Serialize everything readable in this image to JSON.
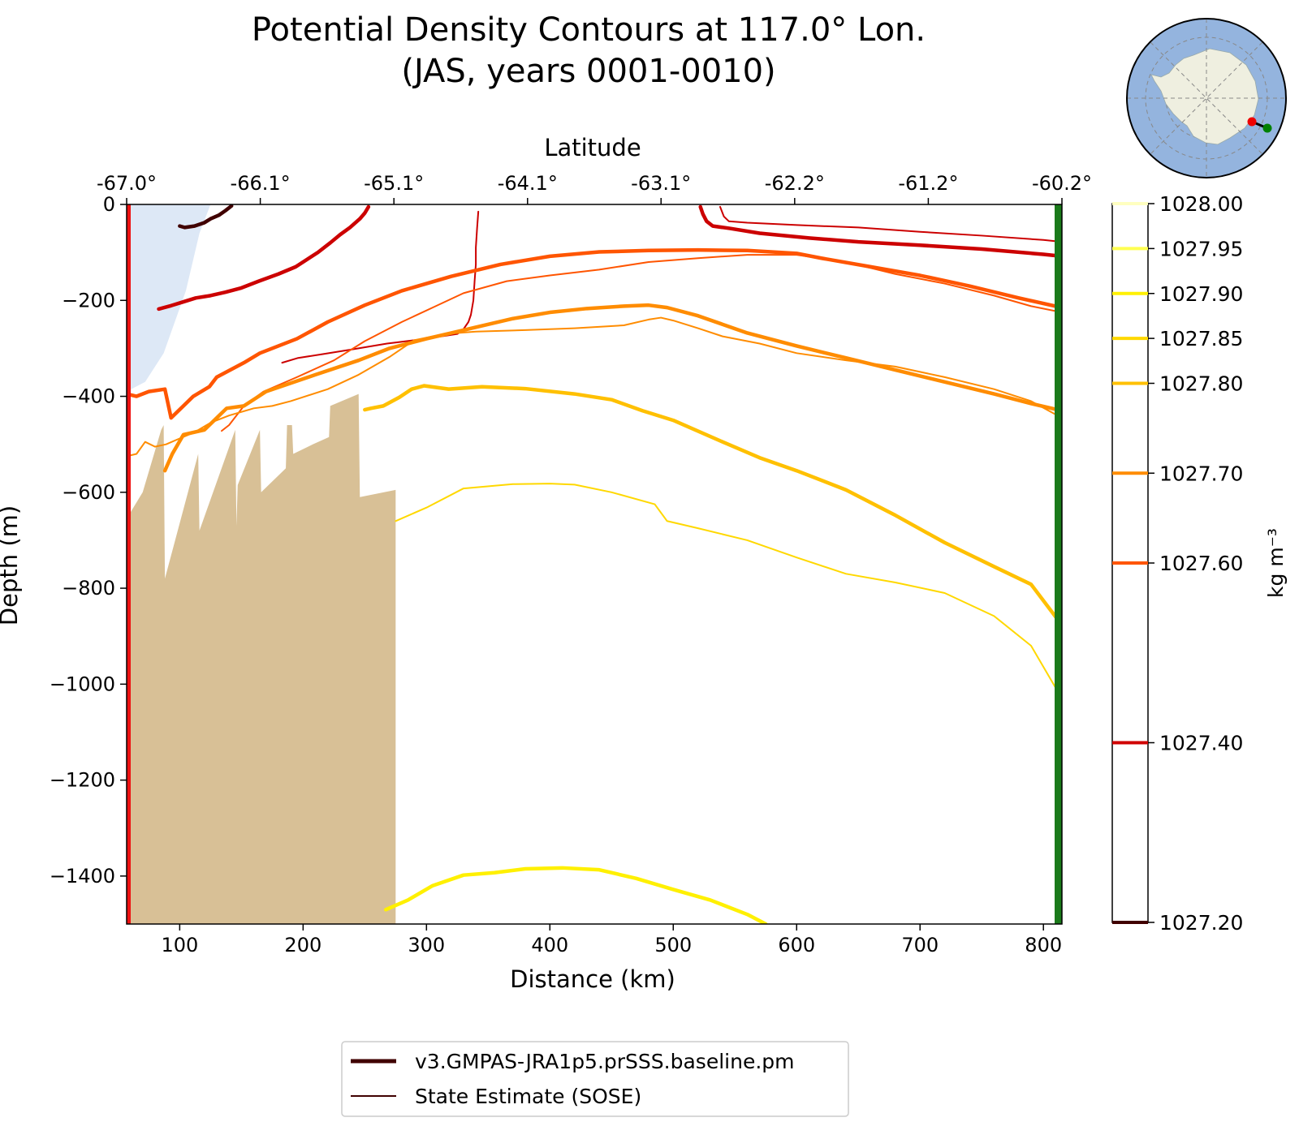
{
  "chart_data": {
    "type": "line",
    "title": "Potential Density Contours at 117.0° Lon.",
    "subtitle": "(JAS, years 0001-0010)",
    "xlabel": "Distance (km)",
    "ylabel": "Depth (m)",
    "top_xlabel": "Latitude",
    "xlim": [
      57,
      815
    ],
    "ylim": [
      -1500,
      0
    ],
    "x_ticks": [
      100,
      200,
      300,
      400,
      500,
      600,
      700,
      800
    ],
    "y_ticks": [
      0,
      -200,
      -400,
      -600,
      -800,
      -1000,
      -1200,
      -1400
    ],
    "y_tick_labels": [
      "0",
      "−200",
      "−400",
      "−600",
      "−800",
      "−1000",
      "−1200",
      "−1400"
    ],
    "top_ticks": [
      {
        "x": 57,
        "label": "-67.0°"
      },
      {
        "x": 165.3,
        "label": "-66.1°"
      },
      {
        "x": 273.6,
        "label": "-65.1°"
      },
      {
        "x": 381.9,
        "label": "-64.1°"
      },
      {
        "x": 490.1,
        "label": "-63.1°"
      },
      {
        "x": 598.4,
        "label": "-62.2°"
      },
      {
        "x": 706.7,
        "label": "-61.2°"
      },
      {
        "x": 815,
        "label": "-60.2°"
      }
    ],
    "colorbar": {
      "label": "kg m⁻³",
      "min": 1027.2,
      "max": 1028.0,
      "ticks": [
        {
          "value": 1028.0,
          "label": "1028.00",
          "color": "#ffffc0"
        },
        {
          "value": 1027.95,
          "label": "1027.95",
          "color": "#ffff50"
        },
        {
          "value": 1027.9,
          "label": "1027.90",
          "color": "#fff000"
        },
        {
          "value": 1027.85,
          "label": "1027.85",
          "color": "#ffd800"
        },
        {
          "value": 1027.8,
          "label": "1027.80",
          "color": "#ffc000"
        },
        {
          "value": 1027.7,
          "label": "1027.70",
          "color": "#ff8c00"
        },
        {
          "value": 1027.6,
          "label": "1027.60",
          "color": "#ff5500"
        },
        {
          "value": 1027.4,
          "label": "1027.40",
          "color": "#d00000"
        },
        {
          "value": 1027.2,
          "label": "1027.20",
          "color": "#400000"
        }
      ]
    },
    "legend": {
      "placement": "bottom-center",
      "entries": [
        {
          "label": "v3.GMPAS-JRA1p5.prSSS.baseline.pm",
          "style": "thick",
          "color": "#400000"
        },
        {
          "label": "State Estimate (SOSE)",
          "style": "thin",
          "color": "#400000"
        }
      ]
    },
    "section_start_color": "#ee1111",
    "section_end_color": "#1a7a1a",
    "bathymetry_color": "#d8c096",
    "ice_shelf_color": "#dde8f6",
    "map_colors": {
      "ocean": "#94b4de",
      "land": "#efefe0",
      "start": "#ee0000",
      "end": "#008000"
    },
    "bathymetry": [
      [
        57,
        -655
      ],
      [
        70,
        -600
      ],
      [
        85,
        -470
      ],
      [
        87,
        -460
      ],
      [
        88,
        -780
      ],
      [
        115,
        -520
      ],
      [
        116,
        -680
      ],
      [
        145,
        -470
      ],
      [
        146,
        -670
      ],
      [
        147,
        -585
      ],
      [
        165,
        -470
      ],
      [
        166,
        -600
      ],
      [
        186,
        -550
      ],
      [
        187,
        -460
      ],
      [
        191,
        -460
      ],
      [
        192,
        -520
      ],
      [
        208,
        -500
      ],
      [
        221,
        -485
      ],
      [
        222,
        -420
      ],
      [
        245,
        -395
      ],
      [
        246,
        -610
      ],
      [
        275,
        -595
      ],
      [
        275,
        -1500
      ],
      [
        57,
        -1500
      ]
    ],
    "ice_shelf": [
      [
        57,
        0
      ],
      [
        125,
        0
      ],
      [
        116,
        -60
      ],
      [
        105,
        -180
      ],
      [
        87,
        -310
      ],
      [
        72,
        -370
      ],
      [
        57,
        -390
      ]
    ],
    "series": [
      {
        "density": 1027.2,
        "style": "thick",
        "color": "#400000",
        "points": [
          [
            100,
            -45
          ],
          [
            104,
            -48
          ],
          [
            112,
            -45
          ],
          [
            120,
            -38
          ],
          [
            125,
            -30
          ],
          [
            132,
            -22
          ],
          [
            137,
            -13
          ],
          [
            142,
            -3
          ]
        ]
      },
      {
        "density": 1027.4,
        "style": "thick",
        "color": "#cc0000",
        "points": [
          [
            83,
            -218
          ],
          [
            93,
            -211
          ],
          [
            103,
            -203
          ],
          [
            113,
            -195
          ],
          [
            125,
            -190
          ],
          [
            137,
            -183
          ],
          [
            150,
            -174
          ],
          [
            164,
            -160
          ],
          [
            180,
            -145
          ],
          [
            194,
            -130
          ],
          [
            203,
            -115
          ],
          [
            212,
            -100
          ],
          [
            222,
            -80
          ],
          [
            230,
            -63
          ],
          [
            238,
            -48
          ],
          [
            246,
            -30
          ],
          [
            250,
            -18
          ],
          [
            253,
            -5
          ]
        ]
      },
      {
        "density": 1027.4,
        "style": "thick",
        "color": "#cc0000",
        "points": [
          [
            522,
            -5
          ],
          [
            524,
            -20
          ],
          [
            527,
            -35
          ],
          [
            532,
            -45
          ],
          [
            546,
            -50
          ],
          [
            570,
            -60
          ],
          [
            610,
            -70
          ],
          [
            650,
            -78
          ],
          [
            700,
            -85
          ],
          [
            750,
            -93
          ],
          [
            800,
            -104
          ],
          [
            815,
            -108
          ]
        ]
      },
      {
        "density": 1027.4,
        "style": "thin",
        "color": "#cc0000",
        "points": [
          [
            183,
            -330
          ],
          [
            196,
            -320
          ],
          [
            216,
            -312
          ],
          [
            240,
            -302
          ],
          [
            268,
            -290
          ],
          [
            300,
            -280
          ],
          [
            312,
            -275
          ],
          [
            325,
            -270
          ],
          [
            330,
            -260
          ],
          [
            334,
            -245
          ],
          [
            336,
            -230
          ],
          [
            338,
            -200
          ],
          [
            339,
            -160
          ],
          [
            340,
            -125
          ],
          [
            340,
            -90
          ],
          [
            341,
            -50
          ],
          [
            342,
            -15
          ]
        ]
      },
      {
        "density": 1027.4,
        "style": "thin",
        "color": "#cc0000",
        "points": [
          [
            538,
            -5
          ],
          [
            541,
            -25
          ],
          [
            545,
            -35
          ],
          [
            560,
            -38
          ],
          [
            600,
            -43
          ],
          [
            650,
            -48
          ],
          [
            700,
            -57
          ],
          [
            750,
            -65
          ],
          [
            800,
            -74
          ],
          [
            815,
            -78
          ]
        ]
      },
      {
        "density": 1027.6,
        "style": "thick",
        "color": "#ff5500",
        "points": [
          [
            57,
            -395
          ],
          [
            65,
            -400
          ],
          [
            75,
            -390
          ],
          [
            88,
            -385
          ],
          [
            93,
            -445
          ],
          [
            103,
            -420
          ],
          [
            111,
            -400
          ],
          [
            124,
            -380
          ],
          [
            130,
            -360
          ],
          [
            152,
            -330
          ],
          [
            165,
            -310
          ],
          [
            195,
            -280
          ],
          [
            220,
            -245
          ],
          [
            250,
            -210
          ],
          [
            280,
            -180
          ],
          [
            320,
            -150
          ],
          [
            360,
            -125
          ],
          [
            400,
            -108
          ],
          [
            440,
            -99
          ],
          [
            480,
            -96
          ],
          [
            520,
            -95
          ],
          [
            560,
            -96
          ],
          [
            600,
            -102
          ],
          [
            620,
            -112
          ],
          [
            660,
            -130
          ],
          [
            700,
            -148
          ],
          [
            740,
            -170
          ],
          [
            780,
            -195
          ],
          [
            815,
            -215
          ]
        ]
      },
      {
        "density": 1027.6,
        "style": "thin",
        "color": "#ff5500",
        "points": [
          [
            134,
            -472
          ],
          [
            140,
            -460
          ],
          [
            152,
            -420
          ],
          [
            168,
            -390
          ],
          [
            195,
            -360
          ],
          [
            225,
            -325
          ],
          [
            250,
            -285
          ],
          [
            280,
            -245
          ],
          [
            305,
            -215
          ],
          [
            330,
            -185
          ],
          [
            365,
            -160
          ],
          [
            400,
            -148
          ],
          [
            440,
            -136
          ],
          [
            480,
            -120
          ],
          [
            520,
            -112
          ],
          [
            560,
            -105
          ],
          [
            600,
            -105
          ],
          [
            640,
            -120
          ],
          [
            680,
            -145
          ],
          [
            720,
            -165
          ],
          [
            760,
            -190
          ],
          [
            790,
            -212
          ],
          [
            815,
            -225
          ]
        ]
      },
      {
        "density": 1027.7,
        "style": "thick",
        "color": "#ff8c00",
        "points": [
          [
            88,
            -555
          ],
          [
            94,
            -520
          ],
          [
            103,
            -480
          ],
          [
            120,
            -470
          ],
          [
            138,
            -425
          ],
          [
            152,
            -420
          ],
          [
            170,
            -390
          ],
          [
            210,
            -355
          ],
          [
            245,
            -325
          ],
          [
            270,
            -300
          ],
          [
            300,
            -280
          ],
          [
            330,
            -262
          ],
          [
            370,
            -238
          ],
          [
            400,
            -225
          ],
          [
            430,
            -217
          ],
          [
            460,
            -212
          ],
          [
            480,
            -210
          ],
          [
            495,
            -215
          ],
          [
            520,
            -232
          ],
          [
            540,
            -250
          ],
          [
            560,
            -268
          ],
          [
            600,
            -295
          ],
          [
            640,
            -320
          ],
          [
            680,
            -345
          ],
          [
            720,
            -370
          ],
          [
            760,
            -395
          ],
          [
            790,
            -415
          ],
          [
            815,
            -430
          ]
        ]
      },
      {
        "density": 1027.7,
        "style": "thin",
        "color": "#ff8c00",
        "points": [
          [
            57,
            -525
          ],
          [
            65,
            -520
          ],
          [
            72,
            -495
          ],
          [
            80,
            -505
          ],
          [
            89,
            -500
          ],
          [
            98,
            -490
          ],
          [
            112,
            -475
          ],
          [
            125,
            -455
          ],
          [
            140,
            -440
          ],
          [
            160,
            -425
          ],
          [
            175,
            -420
          ],
          [
            190,
            -410
          ],
          [
            220,
            -385
          ],
          [
            245,
            -355
          ],
          [
            270,
            -318
          ],
          [
            290,
            -283
          ],
          [
            315,
            -270
          ],
          [
            340,
            -265
          ],
          [
            380,
            -262
          ],
          [
            420,
            -258
          ],
          [
            460,
            -252
          ],
          [
            480,
            -240
          ],
          [
            490,
            -236
          ],
          [
            500,
            -242
          ],
          [
            520,
            -258
          ],
          [
            540,
            -275
          ],
          [
            570,
            -290
          ],
          [
            600,
            -310
          ],
          [
            640,
            -325
          ],
          [
            680,
            -338
          ],
          [
            720,
            -360
          ],
          [
            760,
            -385
          ],
          [
            790,
            -410
          ],
          [
            815,
            -445
          ]
        ]
      },
      {
        "density": 1027.8,
        "style": "thick",
        "color": "#ffc000",
        "points": [
          [
            250,
            -428
          ],
          [
            255,
            -425
          ],
          [
            265,
            -420
          ],
          [
            278,
            -402
          ],
          [
            288,
            -385
          ],
          [
            298,
            -378
          ],
          [
            318,
            -385
          ],
          [
            345,
            -380
          ],
          [
            380,
            -384
          ],
          [
            420,
            -395
          ],
          [
            450,
            -407
          ],
          [
            475,
            -430
          ],
          [
            500,
            -450
          ],
          [
            540,
            -495
          ],
          [
            570,
            -528
          ],
          [
            600,
            -555
          ],
          [
            640,
            -595
          ],
          [
            680,
            -648
          ],
          [
            720,
            -705
          ],
          [
            760,
            -755
          ],
          [
            790,
            -792
          ],
          [
            815,
            -877
          ]
        ]
      },
      {
        "density": 1027.85,
        "style": "thin",
        "color": "#ffd800",
        "points": [
          [
            275,
            -660
          ],
          [
            300,
            -632
          ],
          [
            330,
            -592
          ],
          [
            370,
            -583
          ],
          [
            400,
            -582
          ],
          [
            420,
            -584
          ],
          [
            450,
            -600
          ],
          [
            485,
            -625
          ],
          [
            495,
            -660
          ],
          [
            520,
            -675
          ],
          [
            560,
            -700
          ],
          [
            600,
            -736
          ],
          [
            640,
            -770
          ],
          [
            680,
            -788
          ],
          [
            720,
            -810
          ],
          [
            760,
            -858
          ],
          [
            790,
            -920
          ],
          [
            815,
            -1030
          ]
        ]
      },
      {
        "density": 1027.9,
        "style": "thick",
        "color": "#fff000",
        "points": [
          [
            267,
            -1470
          ],
          [
            285,
            -1450
          ],
          [
            305,
            -1420
          ],
          [
            330,
            -1398
          ],
          [
            355,
            -1393
          ],
          [
            380,
            -1385
          ],
          [
            410,
            -1383
          ],
          [
            440,
            -1387
          ],
          [
            470,
            -1405
          ],
          [
            500,
            -1428
          ],
          [
            530,
            -1450
          ],
          [
            560,
            -1480
          ],
          [
            575,
            -1500
          ]
        ]
      }
    ]
  }
}
